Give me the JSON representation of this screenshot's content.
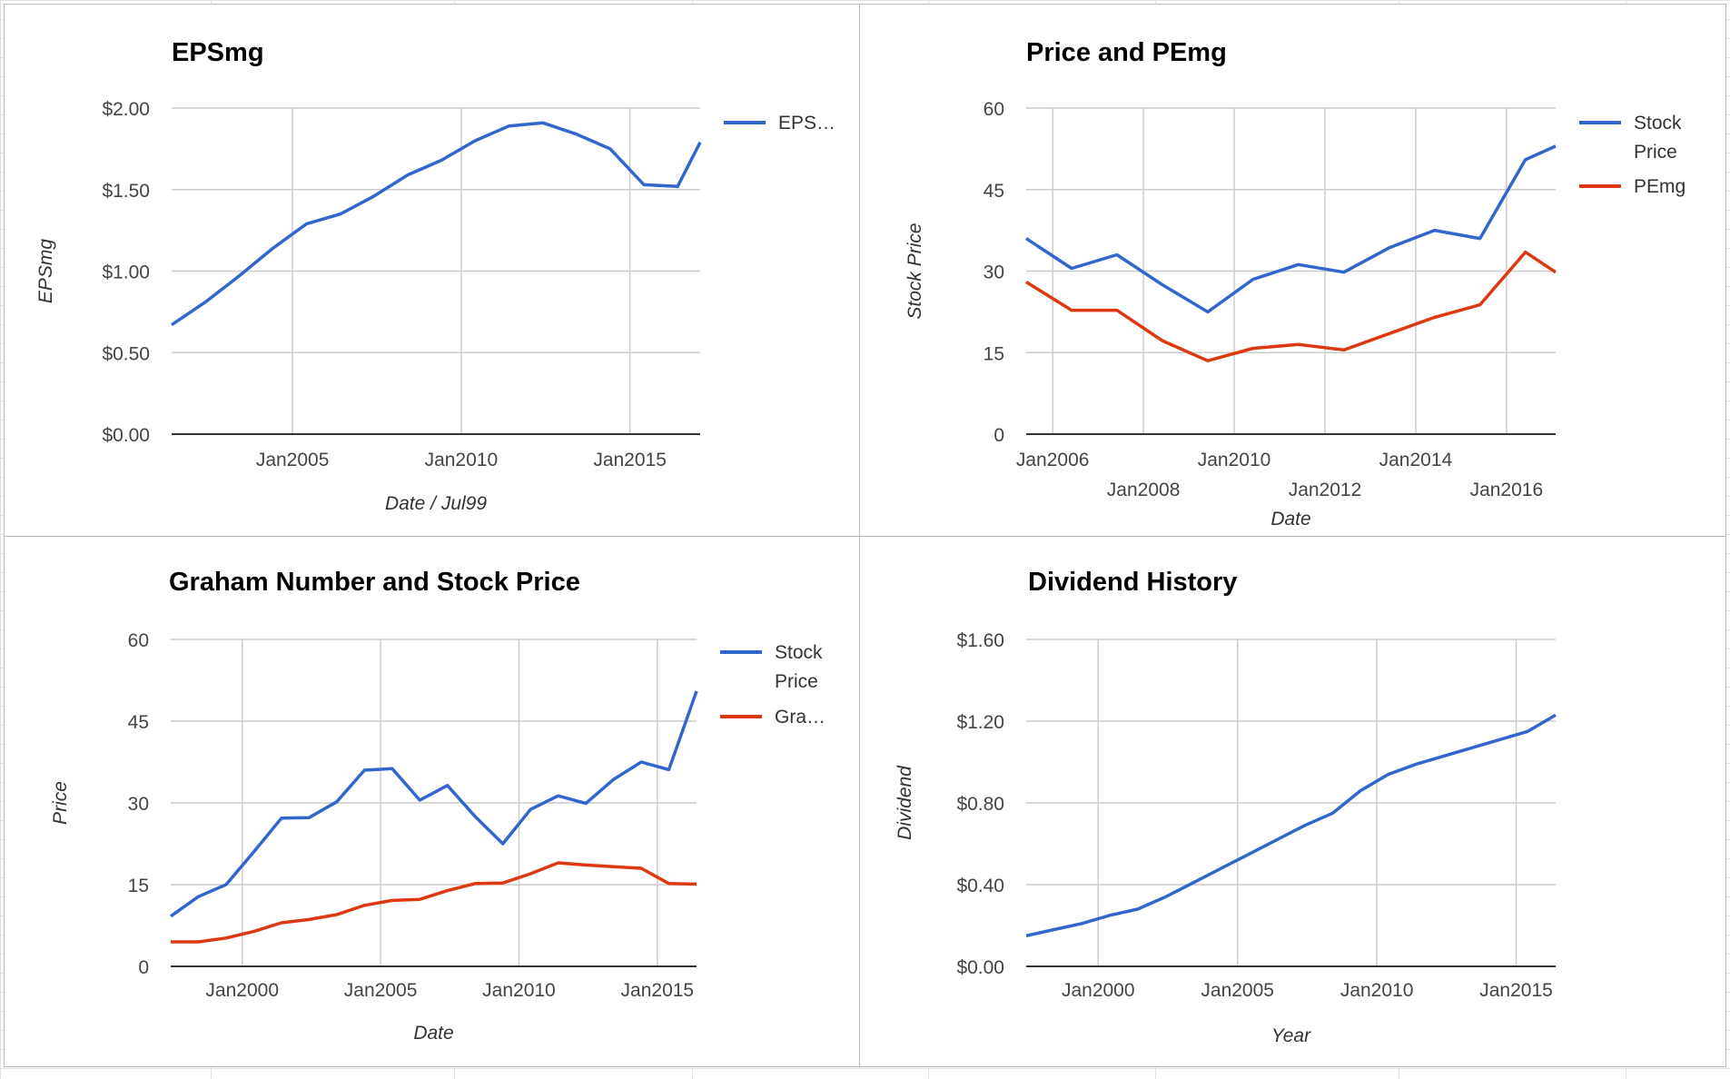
{
  "colors": {
    "blue": "#3366cc",
    "red": "#dc3912",
    "grid": "#cccccc",
    "axis": "#333333",
    "label": "#444444",
    "title": "#000000"
  },
  "chart_data": [
    {
      "type": "line",
      "title": "EPSmg",
      "xlabel": "Date / Jul99",
      "ylabel": "EPSmg",
      "x_ticks": [
        "Jan2005",
        "Jan2010",
        "Jan2015"
      ],
      "y_ticks": [
        "$0.00",
        "$0.50",
        "$1.00",
        "$1.50",
        "$2.00"
      ],
      "ylim": [
        0,
        2
      ],
      "xlim": [
        "2001-06-01",
        "2017-02-01"
      ],
      "grid": true,
      "legend_position": "right",
      "legend": [
        "EPS…"
      ],
      "series": [
        {
          "name": "EPS…",
          "color": "#3366cc",
          "x": [
            "2001-06-01",
            "2002-06-01",
            "2003-06-01",
            "2004-06-01",
            "2005-06-01",
            "2006-06-01",
            "2007-06-01",
            "2008-06-01",
            "2009-06-01",
            "2010-06-01",
            "2011-06-01",
            "2012-06-01",
            "2013-06-01",
            "2014-06-01",
            "2015-06-01",
            "2016-06-01",
            "2017-02-01"
          ],
          "values": [
            0.67,
            0.81,
            0.97,
            1.14,
            1.29,
            1.35,
            1.46,
            1.59,
            1.68,
            1.8,
            1.89,
            1.91,
            1.84,
            1.75,
            1.53,
            1.52,
            1.79
          ]
        }
      ]
    },
    {
      "type": "line",
      "title": "Price and PEmg",
      "xlabel": "Date",
      "ylabel": "Stock Price",
      "x_ticks": [
        "Jan2006",
        "Jan2008",
        "Jan2010",
        "Jan2012",
        "Jan2014",
        "Jan2016"
      ],
      "y_ticks": [
        "0",
        "15",
        "30",
        "45",
        "60"
      ],
      "ylim": [
        0,
        60
      ],
      "xlim": [
        "2005-06-01",
        "2017-02-01"
      ],
      "grid": true,
      "legend_position": "right",
      "legend": [
        "Stock Price",
        "PEmg"
      ],
      "series": [
        {
          "name": "Stock Price",
          "color": "#3366cc",
          "x": [
            "2005-06-01",
            "2006-06-01",
            "2007-06-01",
            "2008-06-01",
            "2009-06-01",
            "2010-06-01",
            "2011-06-01",
            "2012-06-01",
            "2013-06-01",
            "2014-06-01",
            "2015-06-01",
            "2016-06-01",
            "2017-02-01"
          ],
          "values": [
            36.0,
            30.5,
            33.0,
            27.5,
            22.5,
            28.5,
            31.2,
            29.8,
            34.3,
            37.5,
            36.0,
            50.5,
            53.0
          ]
        },
        {
          "name": "PEmg",
          "color": "#dc3912",
          "x": [
            "2005-06-01",
            "2006-06-01",
            "2007-06-01",
            "2008-06-01",
            "2009-06-01",
            "2010-06-01",
            "2011-06-01",
            "2012-06-01",
            "2013-06-01",
            "2014-06-01",
            "2015-06-01",
            "2016-06-01",
            "2017-02-01"
          ],
          "values": [
            28.0,
            22.8,
            22.8,
            17.2,
            13.5,
            15.8,
            16.5,
            15.5,
            18.5,
            21.5,
            23.8,
            33.5,
            29.8
          ]
        }
      ]
    },
    {
      "type": "line",
      "title": "Graham Number and Stock Price",
      "xlabel": "Date",
      "ylabel": "Price",
      "x_ticks": [
        "Jan2000",
        "Jan2005",
        "Jan2010",
        "Jan2015"
      ],
      "y_ticks": [
        "0",
        "15",
        "30",
        "45",
        "60"
      ],
      "ylim": [
        0,
        60
      ],
      "xlim": [
        "1997-06-01",
        "2016-06-01"
      ],
      "grid": true,
      "legend_position": "right",
      "legend": [
        "Stock Price",
        "Gra…"
      ],
      "series": [
        {
          "name": "Stock Price",
          "color": "#3366cc",
          "x": [
            "1997-06-01",
            "1998-06-01",
            "1999-06-01",
            "2000-06-01",
            "2001-06-01",
            "2002-06-01",
            "2003-06-01",
            "2004-06-01",
            "2005-06-01",
            "2006-06-01",
            "2007-06-01",
            "2008-06-01",
            "2009-06-01",
            "2010-06-01",
            "2011-06-01",
            "2012-06-01",
            "2013-06-01",
            "2014-06-01",
            "2015-06-01",
            "2016-06-01"
          ],
          "values": [
            9.2,
            12.8,
            15.0,
            21.0,
            27.2,
            27.3,
            30.2,
            36.0,
            36.3,
            30.5,
            33.2,
            27.5,
            22.5,
            28.8,
            31.3,
            29.9,
            34.3,
            37.5,
            36.1,
            50.5
          ]
        },
        {
          "name": "Gra…",
          "color": "#dc3912",
          "x": [
            "1997-06-01",
            "1998-06-01",
            "1999-06-01",
            "2000-06-01",
            "2001-06-01",
            "2002-06-01",
            "2003-06-01",
            "2004-06-01",
            "2005-06-01",
            "2006-06-01",
            "2007-06-01",
            "2008-06-01",
            "2009-06-01",
            "2010-06-01",
            "2011-06-01",
            "2012-06-01",
            "2013-06-01",
            "2014-06-01",
            "2015-06-01",
            "2016-06-01"
          ],
          "values": [
            4.5,
            4.5,
            5.2,
            6.4,
            8.0,
            8.6,
            9.5,
            11.2,
            12.1,
            12.3,
            13.9,
            15.2,
            15.3,
            17.0,
            19.0,
            18.6,
            18.3,
            18.0,
            15.2,
            15.1
          ]
        }
      ]
    },
    {
      "type": "line",
      "title": "Dividend History",
      "xlabel": "Year",
      "ylabel": "Dividend",
      "x_ticks": [
        "Jan2000",
        "Jan2005",
        "Jan2010",
        "Jan2015"
      ],
      "y_ticks": [
        "$0.00",
        "$0.40",
        "$0.80",
        "$1.20",
        "$1.60"
      ],
      "ylim": [
        0,
        1.6
      ],
      "xlim": [
        "1997-06-01",
        "2016-06-01"
      ],
      "grid": true,
      "legend_position": "none",
      "legend": [],
      "series": [
        {
          "name": "",
          "color": "#3366cc",
          "x": [
            "1997-06-01",
            "1998-06-01",
            "1999-06-01",
            "2000-06-01",
            "2001-06-01",
            "2002-06-01",
            "2003-06-01",
            "2004-06-01",
            "2005-06-01",
            "2006-06-01",
            "2007-06-01",
            "2008-06-01",
            "2009-06-01",
            "2010-06-01",
            "2011-06-01",
            "2012-06-01",
            "2013-06-01",
            "2014-06-01",
            "2015-06-01",
            "2016-06-01"
          ],
          "values": [
            0.15,
            0.18,
            0.21,
            0.25,
            0.28,
            0.34,
            0.41,
            0.48,
            0.55,
            0.62,
            0.69,
            0.75,
            0.86,
            0.94,
            0.99,
            1.03,
            1.07,
            1.11,
            1.15,
            1.23
          ]
        }
      ]
    }
  ]
}
